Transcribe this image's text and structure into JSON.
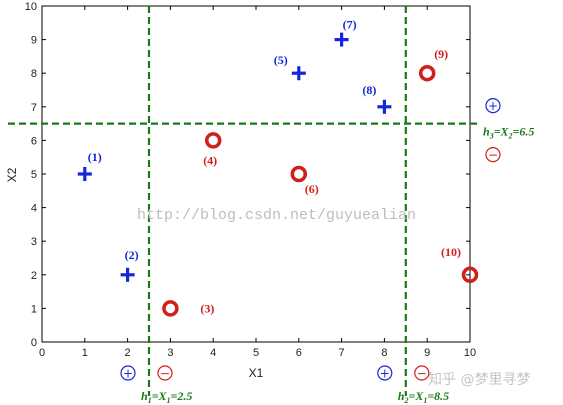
{
  "chart_data": {
    "type": "scatter",
    "title": "",
    "xlabel": "X1",
    "ylabel": "X2",
    "xlim": [
      0,
      10
    ],
    "ylim": [
      0,
      10
    ],
    "xticks": [
      "0",
      "1",
      "2",
      "3",
      "4",
      "5",
      "6",
      "7",
      "8",
      "9",
      "10"
    ],
    "yticks": [
      "0",
      "1",
      "2",
      "3",
      "4",
      "5",
      "6",
      "7",
      "8",
      "9",
      "10"
    ],
    "grid": false,
    "series": [
      {
        "name": "positive",
        "marker": "plus",
        "color": "#1428d8",
        "points": [
          {
            "label": "(1)",
            "x": 1,
            "y": 5
          },
          {
            "label": "(2)",
            "x": 2,
            "y": 2
          },
          {
            "label": "(5)",
            "x": 6,
            "y": 8
          },
          {
            "label": "(7)",
            "x": 7,
            "y": 9
          },
          {
            "label": "(8)",
            "x": 8,
            "y": 7
          }
        ]
      },
      {
        "name": "negative",
        "marker": "circle",
        "color": "#d0201c",
        "points": [
          {
            "label": "(3)",
            "x": 3,
            "y": 1
          },
          {
            "label": "(4)",
            "x": 4,
            "y": 6
          },
          {
            "label": "(6)",
            "x": 6,
            "y": 5
          },
          {
            "label": "(9)",
            "x": 9,
            "y": 8
          },
          {
            "label": "(10)",
            "x": 10,
            "y": 2
          }
        ]
      }
    ],
    "thresholds": [
      {
        "id": "h1",
        "axis": "x",
        "value": 2.5,
        "prefix": "h",
        "sub": "1",
        "eq": "=X",
        "eqsub": "1",
        "rhs": "=2.5",
        "left_sign": "+",
        "right_sign": "−"
      },
      {
        "id": "h2",
        "axis": "x",
        "value": 8.5,
        "prefix": "h",
        "sub": "2",
        "eq": "=X",
        "eqsub": "1",
        "rhs": "=8.5",
        "left_sign": "+",
        "right_sign": "−"
      },
      {
        "id": "h3",
        "axis": "y",
        "value": 6.5,
        "prefix": "h",
        "sub": "3",
        "eq": "=X",
        "eqsub": "2",
        "rhs": "=6.5",
        "upper_sign": "+",
        "lower_sign": "−"
      }
    ],
    "colors": {
      "threshold": "#1a7a1a",
      "positive": "#1428d8",
      "negative": "#d0201c"
    }
  },
  "watermark": {
    "url": "http://blog.csdn.net/guyuealian",
    "logo": "知乎 @梦里寻梦"
  }
}
